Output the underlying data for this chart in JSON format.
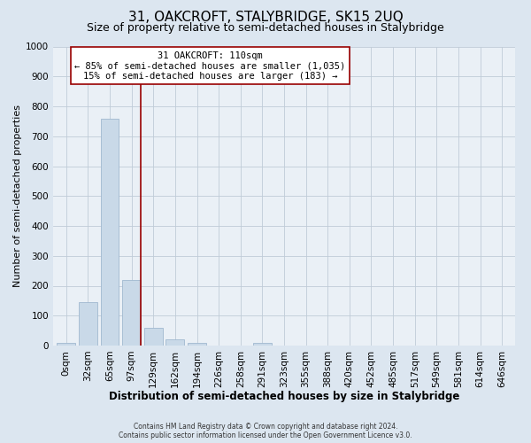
{
  "title": "31, OAKCROFT, STALYBRIDGE, SK15 2UQ",
  "subtitle": "Size of property relative to semi-detached houses in Stalybridge",
  "xlabel": "Distribution of semi-detached houses by size in Stalybridge",
  "ylabel": "Number of semi-detached properties",
  "bar_labels": [
    "0sqm",
    "32sqm",
    "65sqm",
    "97sqm",
    "129sqm",
    "162sqm",
    "194sqm",
    "226sqm",
    "258sqm",
    "291sqm",
    "323sqm",
    "355sqm",
    "388sqm",
    "420sqm",
    "452sqm",
    "485sqm",
    "517sqm",
    "549sqm",
    "581sqm",
    "614sqm",
    "646sqm"
  ],
  "bar_values": [
    8,
    145,
    760,
    218,
    58,
    22,
    10,
    0,
    0,
    10,
    0,
    0,
    0,
    0,
    0,
    0,
    0,
    0,
    0,
    0,
    0
  ],
  "bar_color": "#c9d9e8",
  "bar_edge_color": "#a0b8cf",
  "property_label": "31 OAKCROFT: 110sqm",
  "annotation_line1": "← 85% of semi-detached houses are smaller (1,035)",
  "annotation_line2": "15% of semi-detached houses are larger (183) →",
  "vline_color": "#990000",
  "annotation_box_color": "#ffffff",
  "annotation_box_edge": "#990000",
  "ylim": [
    0,
    1000
  ],
  "yticks": [
    0,
    100,
    200,
    300,
    400,
    500,
    600,
    700,
    800,
    900,
    1000
  ],
  "bg_color": "#dce6f0",
  "plot_bg_color": "#eaf0f6",
  "footer_line1": "Contains HM Land Registry data © Crown copyright and database right 2024.",
  "footer_line2": "Contains public sector information licensed under the Open Government Licence v3.0.",
  "title_fontsize": 11,
  "subtitle_fontsize": 9,
  "xlabel_fontsize": 8.5,
  "ylabel_fontsize": 8,
  "tick_fontsize": 7.5,
  "annot_fontsize": 7.5,
  "footer_fontsize": 5.5,
  "vline_x_index": 3.41
}
